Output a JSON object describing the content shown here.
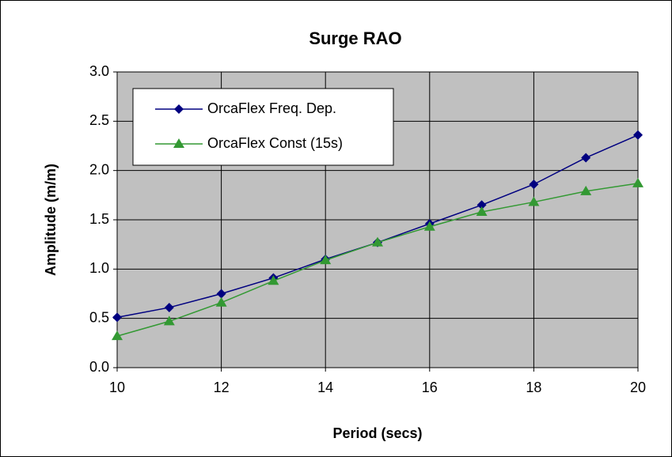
{
  "chart_data": {
    "type": "line",
    "title": "Surge RAO",
    "xlabel": "Period (secs)",
    "ylabel": "Amplitude (m/m)",
    "x": [
      10,
      11,
      12,
      13,
      14,
      15,
      16,
      17,
      18,
      19,
      20
    ],
    "series": [
      {
        "name": "OrcaFlex Freq. Dep.",
        "color": "#000080",
        "marker": "diamond",
        "values": [
          0.51,
          0.61,
          0.75,
          0.91,
          1.1,
          1.27,
          1.46,
          1.65,
          1.86,
          2.13,
          2.36
        ]
      },
      {
        "name": "OrcaFlex Const (15s)",
        "color": "#339933",
        "marker": "triangle",
        "values": [
          0.32,
          0.47,
          0.66,
          0.88,
          1.09,
          1.27,
          1.43,
          1.58,
          1.68,
          1.79,
          1.87
        ]
      }
    ],
    "xlim": [
      10,
      20
    ],
    "xticks": [
      10,
      12,
      14,
      16,
      18,
      20
    ],
    "ylim": [
      0,
      3
    ],
    "yticks": [
      {
        "value": 0,
        "label": "0.0"
      },
      0.5,
      {
        "value": 1,
        "label": "1.0"
      },
      1.5,
      {
        "value": 2,
        "label": "2.0"
      },
      2.5,
      {
        "value": 3,
        "label": "3.0"
      }
    ],
    "grid": true,
    "legend": "upper left",
    "plot_background": "#c0c0c0"
  }
}
